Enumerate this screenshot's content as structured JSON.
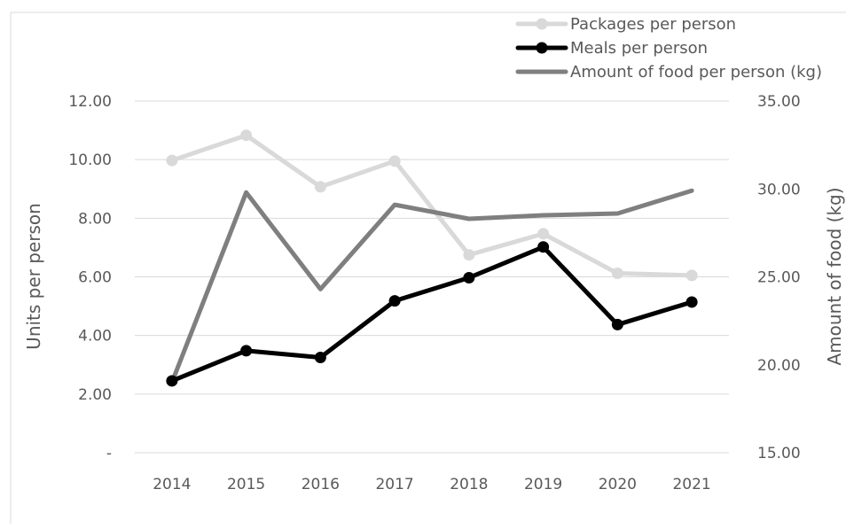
{
  "chart_data": {
    "type": "line",
    "title": "",
    "categories": [
      "2014",
      "2015",
      "2016",
      "2017",
      "2018",
      "2019",
      "2020",
      "2021"
    ],
    "y_left": {
      "label": "Units per person",
      "range": [
        0,
        12
      ],
      "ticks": [
        0,
        2,
        4,
        6,
        8,
        10,
        12
      ],
      "tick_labels": [
        "-",
        "2.00",
        "4.00",
        "6.00",
        "8.00",
        "10.00",
        "12.00"
      ]
    },
    "y_right": {
      "label": "Amount of food (kg)",
      "range": [
        15,
        35
      ],
      "ticks": [
        15,
        20,
        25,
        30,
        35
      ],
      "tick_labels": [
        "15.00",
        "20.00",
        "25.00",
        "30.00",
        "35.00"
      ]
    },
    "series": [
      {
        "name": "Packages per person",
        "axis": "left",
        "color": "#d9d9d9",
        "markers": true,
        "values": [
          9.97,
          10.83,
          9.07,
          9.95,
          6.75,
          7.47,
          6.12,
          6.05
        ]
      },
      {
        "name": "Meals per person",
        "axis": "left",
        "color": "#000000",
        "markers": true,
        "values": [
          2.45,
          3.48,
          3.25,
          5.18,
          5.97,
          7.02,
          4.37,
          5.14
        ]
      },
      {
        "name": "Amount of food per person (kg)",
        "axis": "right",
        "color": "#7f7f7f",
        "markers": false,
        "values": [
          19.0,
          29.8,
          24.3,
          29.1,
          28.3,
          28.5,
          28.6,
          29.9
        ]
      }
    ],
    "grid": true,
    "legend_position": "top-right"
  }
}
